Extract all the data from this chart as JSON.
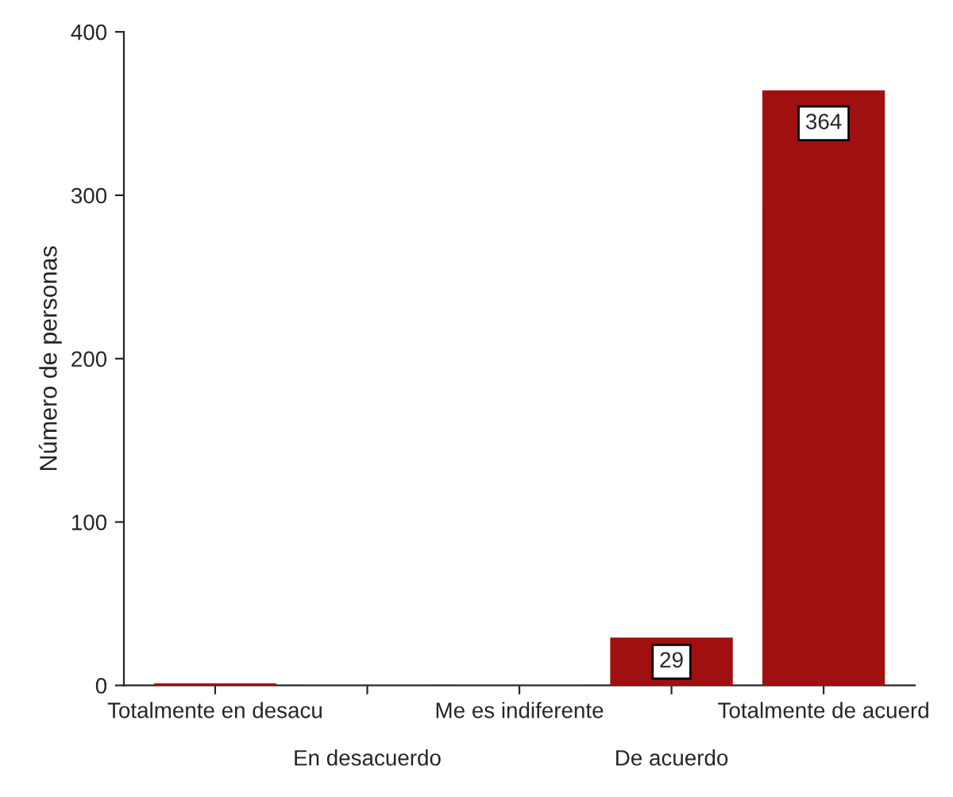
{
  "chart_data": {
    "type": "bar",
    "ylabel": "Número de personas",
    "categories": [
      "Totalmente en desacu",
      "En desacuerdo",
      "Me es indiferente",
      "De acuerdo",
      "Totalmente de acuerd"
    ],
    "values": [
      1,
      0,
      0,
      29,
      364
    ],
    "value_labels": [
      null,
      null,
      null,
      "29",
      "364"
    ],
    "color": "#a01010",
    "ylim": [
      0,
      400
    ],
    "yticks": [
      0,
      100,
      200,
      300,
      400
    ],
    "grid": false
  }
}
